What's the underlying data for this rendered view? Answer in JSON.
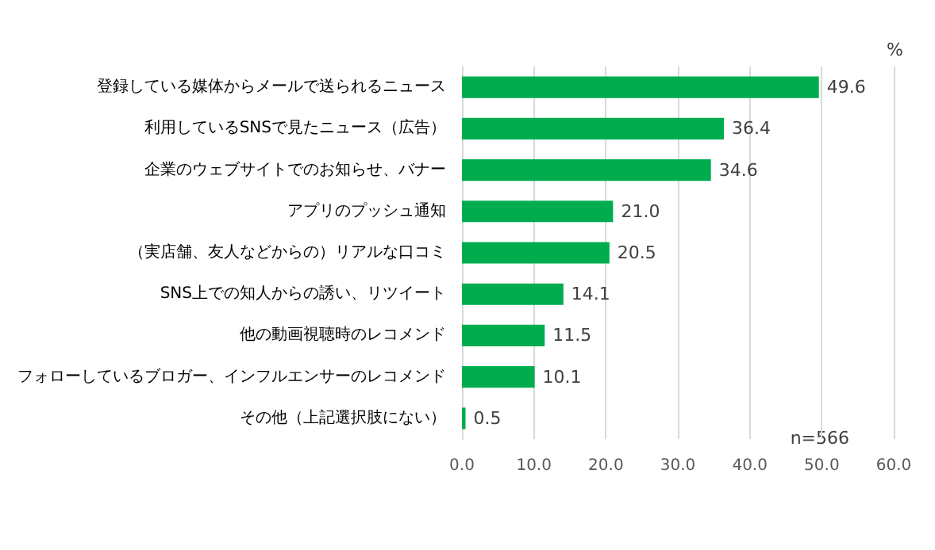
{
  "chart_data": {
    "type": "bar",
    "orientation": "horizontal",
    "categories": [
      "登録している媒体からメールで送られるニュース",
      "利用しているSNSで見たニュース（広告）",
      "企業のウェブサイトでのお知らせ、バナー",
      "アプリのプッシュ通知",
      "（実店舗、友人などからの）リアルな口コミ",
      "SNS上での知人からの誘い、リツイート",
      "他の動画視聴時のレコメンド",
      "フォローしているブロガー、インフルエンサーのレコメンド",
      "その他（上記選択肢にない）"
    ],
    "values": [
      49.6,
      36.4,
      34.6,
      21.0,
      20.5,
      14.1,
      11.5,
      10.1,
      0.5
    ],
    "color": "#00ac4e",
    "value_labels": [
      "49.6",
      "36.4",
      "34.6",
      "21.0",
      "20.5",
      "14.1",
      "11.5",
      "10.1",
      "0.5"
    ],
    "xlabel": "%",
    "annotations": [
      "n=566"
    ],
    "xlim": [
      0,
      60
    ],
    "xticks": [
      {
        "value": 0,
        "label": "0.0"
      },
      {
        "value": 10,
        "label": "10.0"
      },
      {
        "value": 20,
        "label": "20.0"
      },
      {
        "value": 30,
        "label": "30.0"
      },
      {
        "value": 40,
        "label": "40.0"
      },
      {
        "value": 50,
        "label": "50.0"
      },
      {
        "value": 60,
        "label": "60.0"
      }
    ],
    "grid": "x"
  }
}
